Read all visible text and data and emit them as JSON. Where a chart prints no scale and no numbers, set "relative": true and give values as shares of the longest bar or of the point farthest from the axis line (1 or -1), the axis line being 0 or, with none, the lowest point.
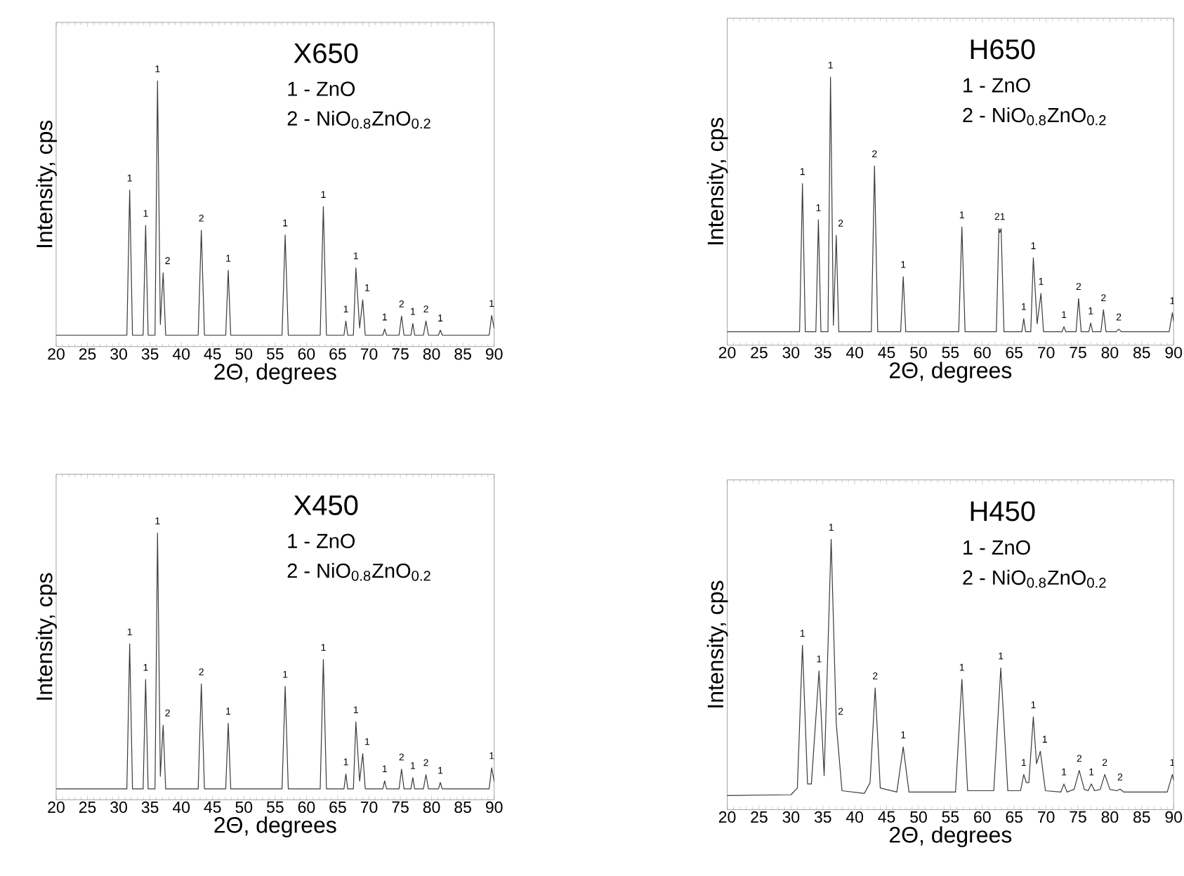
{
  "chart_data": [
    {
      "type": "line",
      "title": "X650",
      "xlabel": "2Θ, degrees",
      "ylabel": "Intensity, cps",
      "relative": true,
      "xlim": [
        20,
        90
      ],
      "xticks": [
        20,
        25,
        30,
        35,
        40,
        45,
        50,
        55,
        60,
        65,
        70,
        75,
        80,
        85,
        90
      ],
      "series": [
        {
          "color": "#3a3a3a",
          "x": [
            20,
            31.3,
            31.75,
            32.2,
            33.9,
            34.3,
            34.7,
            35.8,
            36.2,
            36.65,
            37.1,
            37.5,
            42.7,
            43.2,
            43.7,
            47.1,
            47.5,
            47.9,
            56.1,
            56.6,
            57.1,
            62.2,
            62.7,
            63.2,
            66.0,
            66.3,
            66.6,
            67.5,
            67.9,
            68.5,
            69.0,
            69.4,
            72.2,
            72.5,
            72.8,
            74.8,
            75.2,
            75.6,
            76.7,
            77.0,
            77.3,
            78.7,
            79.1,
            79.5,
            81.1,
            81.4,
            81.7,
            89.2,
            89.6,
            90
          ],
          "values": [
            0.043,
            0.043,
            0.589,
            0.043,
            0.043,
            0.456,
            0.043,
            0.043,
            1,
            0.083,
            0.278,
            0.043,
            0.043,
            0.438,
            0.043,
            0.043,
            0.287,
            0.043,
            0.043,
            0.42,
            0.043,
            0.043,
            0.527,
            0.043,
            0.043,
            0.096,
            0.043,
            0.043,
            0.296,
            0.07,
            0.176,
            0.043,
            0.043,
            0.066,
            0.043,
            0.043,
            0.115,
            0.043,
            0.043,
            0.087,
            0.043,
            0.043,
            0.096,
            0.043,
            0.043,
            0.062,
            0.043,
            0.043,
            0.117,
            0.07
          ]
        }
      ],
      "annotations": [
        "1 - ZnO",
        "2 - NiO$_{0.8}$ZnO$_{0.2}$",
        {
          "text": "1",
          "x": 31.75,
          "y": 0.589
        },
        {
          "text": "1",
          "x": 34.3,
          "y": 0.456
        },
        {
          "text": "1",
          "x": 36.2,
          "y": 1
        },
        {
          "text": "2",
          "x": 37.1,
          "y": 0.278
        },
        {
          "text": "2",
          "x": 43.2,
          "y": 0.438
        },
        {
          "text": "1",
          "x": 47.5,
          "y": 0.287
        },
        {
          "text": "1",
          "x": 56.6,
          "y": 0.42
        },
        {
          "text": "1",
          "x": 62.7,
          "y": 0.527
        },
        {
          "text": "1",
          "x": 66.3,
          "y": 0.096
        },
        {
          "text": "1",
          "x": 67.9,
          "y": 0.296
        },
        {
          "text": "1",
          "x": 69.0,
          "y": 0.176
        },
        {
          "text": "1",
          "x": 72.5,
          "y": 0.066
        },
        {
          "text": "2",
          "x": 75.2,
          "y": 0.115
        },
        {
          "text": "1",
          "x": 77.0,
          "y": 0.087
        },
        {
          "text": "2",
          "x": 79.1,
          "y": 0.096
        },
        {
          "text": "1",
          "x": 81.4,
          "y": 0.062
        },
        {
          "text": "1",
          "x": 89.6,
          "y": 0.117
        }
      ]
    },
    {
      "type": "line",
      "title": "H650",
      "xlabel": "2Θ, degrees",
      "ylabel": "Intensity, cps",
      "relative": true,
      "xlim": [
        20,
        90
      ],
      "xticks": [
        20,
        25,
        30,
        35,
        40,
        45,
        50,
        55,
        60,
        65,
        70,
        75,
        80,
        85,
        90
      ],
      "series": [
        {
          "color": "#3a3a3a",
          "x": [
            20,
            31.35,
            31.8,
            32.25,
            33.9,
            34.3,
            34.7,
            35.8,
            36.2,
            36.65,
            37.1,
            37.5,
            42.6,
            43.1,
            43.6,
            47.2,
            47.6,
            48.0,
            56.3,
            56.8,
            57.3,
            62.2,
            62.6,
            62.75,
            62.95,
            63.4,
            66.2,
            66.5,
            66.8,
            67.6,
            68.0,
            68.6,
            69.2,
            69.6,
            72.5,
            72.8,
            73.1,
            74.7,
            75.1,
            75.5,
            76.7,
            77.0,
            77.3,
            78.6,
            79.0,
            79.4,
            81.0,
            81.4,
            81.8,
            89.3,
            89.8,
            90
          ],
          "values": [
            0.05,
            0.05,
            0.603,
            0.05,
            0.05,
            0.468,
            0.05,
            0.05,
            1,
            0.074,
            0.41,
            0.05,
            0.05,
            0.669,
            0.05,
            0.05,
            0.256,
            0.05,
            0.05,
            0.441,
            0.05,
            0.05,
            0.435,
            0.42,
            0.435,
            0.05,
            0.05,
            0.099,
            0.05,
            0.05,
            0.326,
            0.08,
            0.193,
            0.05,
            0.05,
            0.069,
            0.05,
            0.05,
            0.174,
            0.05,
            0.05,
            0.083,
            0.05,
            0.05,
            0.132,
            0.05,
            0.05,
            0.06,
            0.05,
            0.05,
            0.121,
            0.09
          ]
        }
      ],
      "annotations": [
        "1 - ZnO",
        "2 - NiO$_{0.8}$ZnO$_{0.2}$",
        {
          "text": "1",
          "x": 31.8,
          "y": 0.603
        },
        {
          "text": "1",
          "x": 34.3,
          "y": 0.468
        },
        {
          "text": "1",
          "x": 36.2,
          "y": 1
        },
        {
          "text": "2",
          "x": 37.1,
          "y": 0.41
        },
        {
          "text": "2",
          "x": 43.1,
          "y": 0.669
        },
        {
          "text": "1",
          "x": 47.6,
          "y": 0.256
        },
        {
          "text": "1",
          "x": 56.8,
          "y": 0.441
        },
        {
          "text": "21",
          "x": 62.75,
          "y": 0.435
        },
        {
          "text": "1",
          "x": 66.5,
          "y": 0.099
        },
        {
          "text": "1",
          "x": 68.0,
          "y": 0.326
        },
        {
          "text": "1",
          "x": 69.2,
          "y": 0.193
        },
        {
          "text": "1",
          "x": 72.8,
          "y": 0.069
        },
        {
          "text": "2",
          "x": 75.1,
          "y": 0.174
        },
        {
          "text": "1",
          "x": 77.0,
          "y": 0.083
        },
        {
          "text": "2",
          "x": 79.0,
          "y": 0.132
        },
        {
          "text": "2",
          "x": 81.4,
          "y": 0.06
        },
        {
          "text": "1",
          "x": 89.8,
          "y": 0.121
        }
      ]
    },
    {
      "type": "line",
      "title": "X450",
      "xlabel": "2Θ, degrees",
      "ylabel": "Intensity, cps",
      "relative": true,
      "xlim": [
        20,
        90
      ],
      "xticks": [
        20,
        25,
        30,
        35,
        40,
        45,
        50,
        55,
        60,
        65,
        70,
        75,
        80,
        85,
        90
      ],
      "series": [
        {
          "color": "#3a3a3a",
          "x": [
            20,
            31.3,
            31.75,
            32.2,
            33.9,
            34.3,
            34.7,
            35.8,
            36.2,
            36.65,
            37.1,
            37.5,
            42.7,
            43.2,
            43.7,
            47.1,
            47.5,
            47.9,
            56.1,
            56.6,
            57.1,
            62.2,
            62.7,
            63.2,
            66.0,
            66.3,
            66.6,
            67.5,
            67.9,
            68.5,
            69.0,
            69.4,
            72.2,
            72.5,
            72.8,
            74.8,
            75.2,
            75.6,
            76.7,
            77.0,
            77.3,
            78.7,
            79.1,
            79.5,
            81.1,
            81.4,
            81.7,
            89.2,
            89.6,
            90
          ],
          "values": [
            0.041,
            0.041,
            0.584,
            0.041,
            0.041,
            0.451,
            0.041,
            0.041,
            1,
            0.088,
            0.28,
            0.041,
            0.041,
            0.434,
            0.041,
            0.041,
            0.287,
            0.041,
            0.041,
            0.425,
            0.041,
            0.041,
            0.526,
            0.041,
            0.041,
            0.097,
            0.041,
            0.041,
            0.292,
            0.07,
            0.173,
            0.041,
            0.041,
            0.071,
            0.041,
            0.041,
            0.115,
            0.041,
            0.041,
            0.083,
            0.041,
            0.041,
            0.094,
            0.041,
            0.041,
            0.065,
            0.041,
            0.041,
            0.12,
            0.07
          ]
        }
      ],
      "annotations": [
        "1 - ZnO",
        "2 - NiO$_{0.8}$ZnO$_{0.2}$",
        {
          "text": "1",
          "x": 31.75,
          "y": 0.584
        },
        {
          "text": "1",
          "x": 34.3,
          "y": 0.451
        },
        {
          "text": "1",
          "x": 36.2,
          "y": 1
        },
        {
          "text": "2",
          "x": 37.1,
          "y": 0.28
        },
        {
          "text": "2",
          "x": 43.2,
          "y": 0.434
        },
        {
          "text": "1",
          "x": 47.5,
          "y": 0.287
        },
        {
          "text": "1",
          "x": 56.6,
          "y": 0.425
        },
        {
          "text": "1",
          "x": 62.7,
          "y": 0.526
        },
        {
          "text": "1",
          "x": 66.3,
          "y": 0.097
        },
        {
          "text": "1",
          "x": 67.9,
          "y": 0.292
        },
        {
          "text": "1",
          "x": 69.0,
          "y": 0.173
        },
        {
          "text": "1",
          "x": 72.5,
          "y": 0.071
        },
        {
          "text": "2",
          "x": 75.2,
          "y": 0.115
        },
        {
          "text": "1",
          "x": 77.0,
          "y": 0.083
        },
        {
          "text": "2",
          "x": 79.1,
          "y": 0.094
        },
        {
          "text": "1",
          "x": 81.4,
          "y": 0.065
        },
        {
          "text": "1",
          "x": 89.6,
          "y": 0.12
        }
      ]
    },
    {
      "type": "line",
      "title": "H450",
      "xlabel": "2Θ, degrees",
      "ylabel": "Intensity, cps",
      "relative": true,
      "xlim": [
        20,
        90
      ],
      "xticks": [
        20,
        25,
        30,
        35,
        40,
        45,
        50,
        55,
        60,
        65,
        70,
        75,
        80,
        85,
        90
      ],
      "series": [
        {
          "color": "#3a3a3a",
          "x": [
            20,
            30,
            31.0,
            31.8,
            32.6,
            33.2,
            34.4,
            35.2,
            36.3,
            37.1,
            38.0,
            41.5,
            42.4,
            43.2,
            44.0,
            46.6,
            47.6,
            48.5,
            55.8,
            56.8,
            57.7,
            61.8,
            62.9,
            64.0,
            66.0,
            66.5,
            66.9,
            67.3,
            68.0,
            68.5,
            69.1,
            69.9,
            72.3,
            72.8,
            73.3,
            74.4,
            75.2,
            76.0,
            76.6,
            77.1,
            77.6,
            78.5,
            79.2,
            80.0,
            81.1,
            81.6,
            82.2,
            89.0,
            89.8,
            90
          ],
          "values": [
            0.052,
            0.055,
            0.08,
            0.608,
            0.095,
            0.095,
            0.513,
            0.126,
            1,
            0.319,
            0.07,
            0.06,
            0.1,
            0.45,
            0.08,
            0.065,
            0.232,
            0.065,
            0.065,
            0.482,
            0.07,
            0.07,
            0.524,
            0.07,
            0.07,
            0.13,
            0.1,
            0.1,
            0.343,
            0.17,
            0.216,
            0.07,
            0.065,
            0.095,
            0.065,
            0.075,
            0.145,
            0.075,
            0.07,
            0.095,
            0.07,
            0.075,
            0.13,
            0.075,
            0.07,
            0.076,
            0.065,
            0.065,
            0.13,
            0.11
          ]
        }
      ],
      "annotations": [
        "1 - ZnO",
        "2 - NiO$_{0.8}$ZnO$_{0.2}$",
        {
          "text": "1",
          "x": 31.8,
          "y": 0.608
        },
        {
          "text": "1",
          "x": 34.4,
          "y": 0.513
        },
        {
          "text": "1",
          "x": 36.3,
          "y": 1
        },
        {
          "text": "2",
          "x": 37.1,
          "y": 0.319
        },
        {
          "text": "2",
          "x": 43.2,
          "y": 0.45
        },
        {
          "text": "1",
          "x": 47.6,
          "y": 0.232
        },
        {
          "text": "1",
          "x": 56.8,
          "y": 0.482
        },
        {
          "text": "1",
          "x": 62.9,
          "y": 0.524
        },
        {
          "text": "1",
          "x": 66.5,
          "y": 0.13
        },
        {
          "text": "1",
          "x": 68.0,
          "y": 0.343
        },
        {
          "text": "1",
          "x": 69.1,
          "y": 0.216
        },
        {
          "text": "1",
          "x": 72.8,
          "y": 0.095
        },
        {
          "text": "2",
          "x": 75.2,
          "y": 0.145
        },
        {
          "text": "1",
          "x": 77.1,
          "y": 0.095
        },
        {
          "text": "2",
          "x": 79.2,
          "y": 0.13
        },
        {
          "text": "2",
          "x": 81.6,
          "y": 0.076
        },
        {
          "text": "1",
          "x": 89.8,
          "y": 0.13
        }
      ]
    }
  ]
}
